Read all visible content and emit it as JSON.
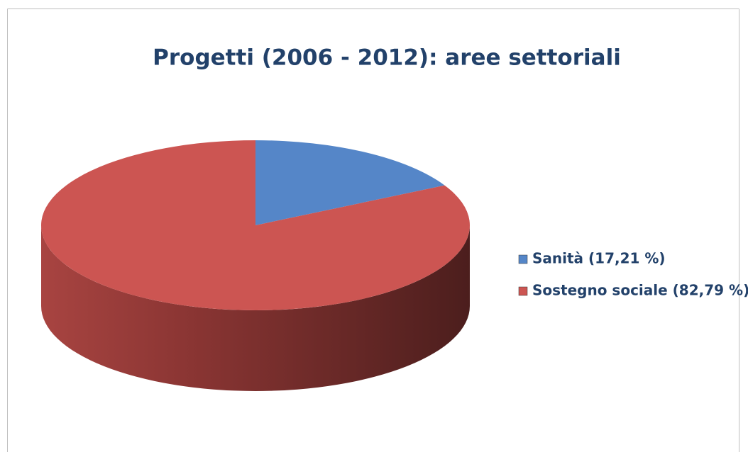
{
  "chart_data": {
    "type": "pie",
    "title": "Progetti  (2006 - 2012): aree settoriali",
    "categories": [
      "Sanità (17,21 %)",
      "Sostegno sociale (82,79 %)"
    ],
    "values": [
      17.21,
      82.79
    ],
    "colors": [
      "#5586c8",
      "#cc5552"
    ],
    "legend": "right"
  }
}
